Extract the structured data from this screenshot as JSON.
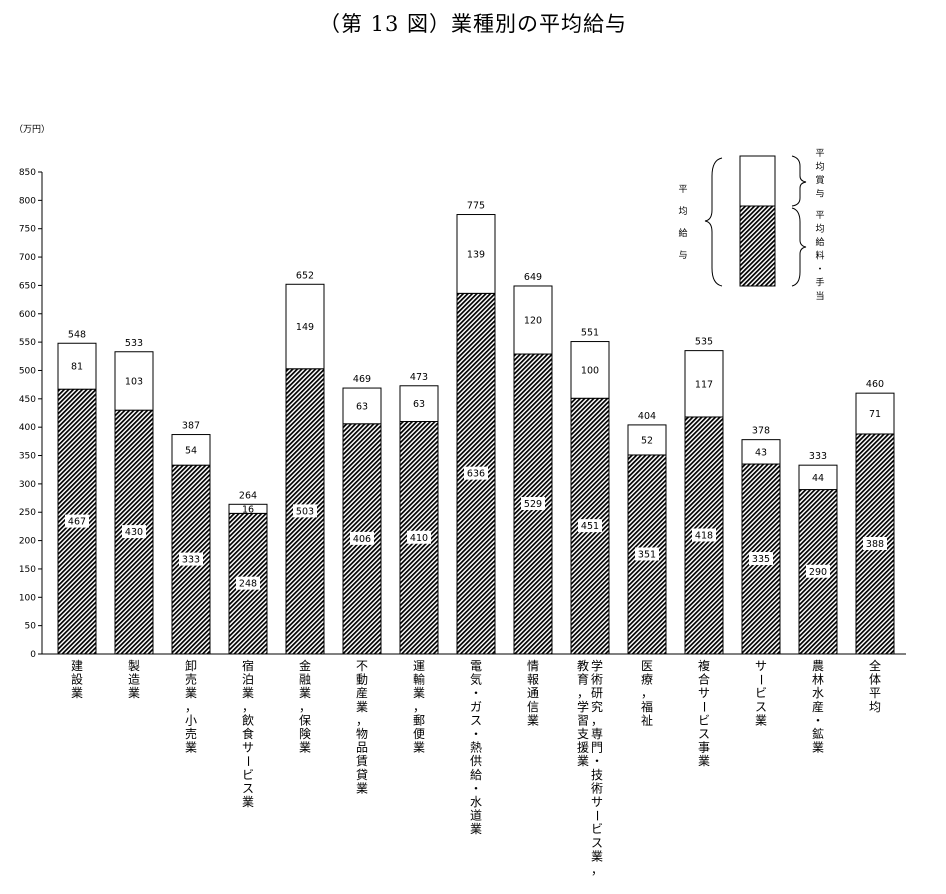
{
  "title": "（第 13 図）業種別の平均給与",
  "chart_data": {
    "type": "bar",
    "stacked": true,
    "unit": "（万円）",
    "ylim": [
      0,
      850
    ],
    "ytick_step": 50,
    "grid": false,
    "legend_position": "top-right",
    "categories": [
      "建設業",
      "製造業",
      "卸売業，小売業",
      "宿泊業，飲食サービス業",
      "金融業，保険業",
      "不動産業，物品賃貸業",
      "運輸業，郵便業",
      "電気・ガス・熱供給・水道業",
      "情報通信業",
      "学術研究，専門・技術サービス業，教育，学習支援業",
      "医療，福祉",
      "複合サービス事業",
      "サービス業",
      "農林水産・鉱業",
      "全体平均"
    ],
    "category_label_columns": [
      [
        "建設業"
      ],
      [
        "製造業"
      ],
      [
        "卸売業，小売業"
      ],
      [
        "宿泊業，飲食サービス業"
      ],
      [
        "金融業，保険業"
      ],
      [
        "不動産業，物品賃貸業"
      ],
      [
        "運輸業，郵便業"
      ],
      [
        "電気・ガス・熱供給・水道業"
      ],
      [
        "情報通信業"
      ],
      [
        "学術研究，専門・技術サービス業，",
        "教育，学習支援業"
      ],
      [
        "医療，福祉"
      ],
      [
        "複合サービス事業"
      ],
      [
        "サービス業"
      ],
      [
        "農林水産・鉱業"
      ],
      [
        "全体平均"
      ]
    ],
    "series": [
      {
        "name": "平均給料・手当",
        "values": [
          467,
          430,
          333,
          248,
          503,
          406,
          410,
          636,
          529,
          451,
          351,
          418,
          335,
          290,
          388
        ]
      },
      {
        "name": "平均賞与",
        "values": [
          81,
          103,
          54,
          16,
          149,
          63,
          63,
          139,
          120,
          100,
          52,
          117,
          43,
          44,
          71
        ]
      }
    ],
    "totals": [
      548,
      533,
      387,
      264,
      652,
      469,
      473,
      775,
      649,
      551,
      404,
      535,
      378,
      333,
      460
    ],
    "legend": {
      "total_label": "平均給与",
      "bonus_label": "平均賞与",
      "salary_label": "平均給料・手当"
    }
  }
}
